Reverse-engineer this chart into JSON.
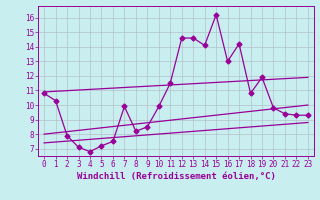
{
  "xlabel": "Windchill (Refroidissement éolien,°C)",
  "ylabel": "",
  "background_color": "#c8eef0",
  "line_color": "#990099",
  "grid_color": "#b0b8c0",
  "xlim": [
    -0.5,
    23.5
  ],
  "ylim": [
    6.5,
    16.8
  ],
  "xticks": [
    0,
    1,
    2,
    3,
    4,
    5,
    6,
    7,
    8,
    9,
    10,
    11,
    12,
    13,
    14,
    15,
    16,
    17,
    18,
    19,
    20,
    21,
    22,
    23
  ],
  "yticks": [
    7,
    8,
    9,
    10,
    11,
    12,
    13,
    14,
    15,
    16
  ],
  "line1_x": [
    0,
    1,
    2,
    3,
    4,
    5,
    6,
    7,
    8,
    9,
    10,
    11,
    12,
    13,
    14,
    15,
    16,
    17,
    18,
    19,
    20,
    21,
    22,
    23
  ],
  "line1_y": [
    10.8,
    10.3,
    7.9,
    7.1,
    6.8,
    7.2,
    7.5,
    9.9,
    8.2,
    8.5,
    9.9,
    11.5,
    14.6,
    14.6,
    14.1,
    16.2,
    13.0,
    14.2,
    10.8,
    11.9,
    9.8,
    9.4,
    9.3,
    9.3
  ],
  "line2_x": [
    0,
    23
  ],
  "line2_y": [
    8.0,
    10.0
  ],
  "line3_x": [
    0,
    23
  ],
  "line3_y": [
    7.4,
    8.8
  ],
  "line4_x": [
    0,
    23
  ],
  "line4_y": [
    10.9,
    11.9
  ],
  "marker": "D",
  "markersize": 2.5,
  "linewidth": 0.9,
  "tick_fontsize": 5.5,
  "label_fontsize": 6.5
}
